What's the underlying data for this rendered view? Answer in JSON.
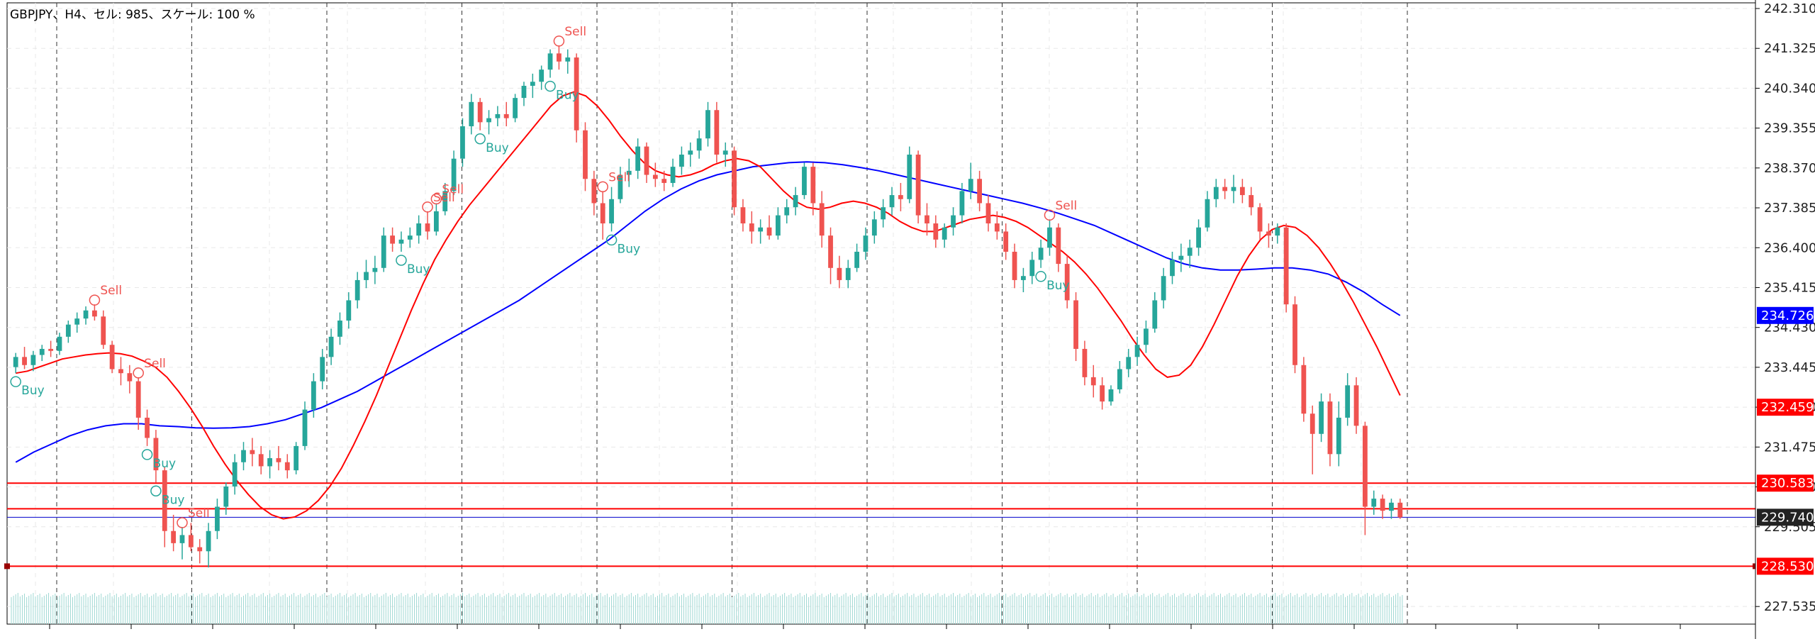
{
  "header": {
    "text": "GBPJPY、H4、セル: 985、スケール: 100 %"
  },
  "colors": {
    "bull": "#26a69a",
    "bear": "#ef5350",
    "ma_fast": "#ff0000",
    "ma_slow": "#0000ff",
    "hline": "#ff0000",
    "bid_line": "#0000cc",
    "grid": "#e8e8e8",
    "vsep": "#333333",
    "volume": "#9fd8d3",
    "tag_blue": "#0000ff",
    "tag_red": "#ff0000",
    "tag_dark": "#222222"
  },
  "chart_data": {
    "type": "candlestick",
    "symbol": "GBPJPY",
    "timeframe": "H4",
    "y_axis": {
      "ylim": [
        227.1,
        242.45
      ],
      "ticks": [
        "242.310",
        "241.325",
        "240.340",
        "239.355",
        "238.370",
        "237.385",
        "236.400",
        "235.415",
        "234.430",
        "233.445",
        "232.460",
        "231.475",
        "230.490",
        "229.505",
        "227.535"
      ],
      "tick_values": [
        242.31,
        241.325,
        240.34,
        239.355,
        238.37,
        237.385,
        236.4,
        235.415,
        234.43,
        233.445,
        232.46,
        231.475,
        230.49,
        229.505,
        227.535
      ]
    },
    "price_tags": [
      {
        "label": "234.726",
        "value": 234.726,
        "color": "blue"
      },
      {
        "label": "232.459",
        "value": 232.459,
        "color": "red"
      },
      {
        "label": "230.583",
        "value": 230.583,
        "color": "red"
      },
      {
        "label": "229.740",
        "value": 229.74,
        "color": "dark"
      },
      {
        "label": "228.530",
        "value": 228.53,
        "color": "red"
      }
    ],
    "horizontal_lines": [
      230.583,
      229.95,
      228.53
    ],
    "bid_line": 229.74,
    "period_separators_count": 11,
    "candles": [
      [
        233.45,
        233.8,
        233.3,
        233.7
      ],
      [
        233.7,
        233.95,
        233.4,
        233.5
      ],
      [
        233.5,
        233.85,
        233.35,
        233.75
      ],
      [
        233.75,
        234.0,
        233.6,
        233.9
      ],
      [
        233.9,
        234.1,
        233.7,
        233.85
      ],
      [
        233.85,
        234.3,
        233.75,
        234.2
      ],
      [
        234.2,
        234.6,
        234.05,
        234.5
      ],
      [
        234.5,
        234.8,
        234.3,
        234.65
      ],
      [
        234.65,
        234.95,
        234.5,
        234.85
      ],
      [
        234.85,
        235.0,
        234.6,
        234.7
      ],
      [
        234.7,
        234.85,
        233.9,
        234.0
      ],
      [
        234.0,
        234.1,
        233.3,
        233.4
      ],
      [
        233.4,
        233.7,
        233.0,
        233.3
      ],
      [
        233.3,
        233.5,
        232.8,
        233.1
      ],
      [
        233.1,
        233.2,
        231.9,
        232.2
      ],
      [
        232.2,
        232.4,
        231.5,
        231.7
      ],
      [
        231.7,
        231.9,
        230.6,
        230.9
      ],
      [
        230.9,
        231.0,
        229.0,
        229.4
      ],
      [
        229.4,
        229.8,
        228.9,
        229.1
      ],
      [
        229.1,
        229.5,
        228.7,
        229.3
      ],
      [
        229.3,
        229.6,
        228.9,
        229.0
      ],
      [
        229.0,
        229.2,
        228.6,
        228.9
      ],
      [
        228.9,
        229.6,
        228.5,
        229.4
      ],
      [
        229.4,
        230.2,
        229.2,
        230.0
      ],
      [
        230.0,
        230.6,
        229.8,
        230.5
      ],
      [
        230.5,
        231.3,
        230.3,
        231.1
      ],
      [
        231.1,
        231.6,
        230.9,
        231.4
      ],
      [
        231.4,
        231.7,
        231.0,
        231.3
      ],
      [
        231.3,
        231.5,
        230.8,
        231.0
      ],
      [
        231.0,
        231.4,
        230.7,
        231.2
      ],
      [
        231.2,
        231.5,
        230.9,
        231.1
      ],
      [
        231.1,
        231.3,
        230.7,
        230.9
      ],
      [
        230.9,
        231.6,
        230.8,
        231.5
      ],
      [
        231.5,
        232.6,
        231.4,
        232.4
      ],
      [
        232.4,
        233.3,
        232.2,
        233.1
      ],
      [
        233.1,
        233.9,
        232.9,
        233.7
      ],
      [
        233.7,
        234.4,
        233.5,
        234.2
      ],
      [
        234.2,
        234.8,
        234.0,
        234.6
      ],
      [
        234.6,
        235.3,
        234.4,
        235.1
      ],
      [
        235.1,
        235.8,
        234.9,
        235.6
      ],
      [
        235.6,
        236.1,
        235.4,
        235.8
      ],
      [
        235.8,
        236.2,
        235.5,
        235.9
      ],
      [
        235.9,
        236.9,
        235.8,
        236.7
      ],
      [
        236.7,
        236.9,
        236.3,
        236.5
      ],
      [
        236.5,
        236.8,
        236.3,
        236.6
      ],
      [
        236.6,
        236.9,
        236.4,
        236.7
      ],
      [
        236.7,
        237.2,
        236.5,
        237.0
      ],
      [
        237.0,
        237.3,
        236.6,
        236.8
      ],
      [
        236.8,
        237.5,
        236.7,
        237.3
      ],
      [
        237.3,
        238.0,
        237.2,
        237.8
      ],
      [
        237.8,
        238.8,
        237.7,
        238.6
      ],
      [
        238.6,
        239.6,
        238.4,
        239.4
      ],
      [
        239.4,
        240.2,
        239.2,
        240.0
      ],
      [
        240.0,
        240.1,
        239.3,
        239.5
      ],
      [
        239.5,
        239.8,
        239.2,
        239.6
      ],
      [
        239.6,
        239.9,
        239.4,
        239.7
      ],
      [
        239.7,
        240.0,
        239.4,
        239.6
      ],
      [
        239.6,
        240.2,
        239.5,
        240.1
      ],
      [
        240.1,
        240.5,
        239.9,
        240.4
      ],
      [
        240.4,
        240.7,
        240.1,
        240.5
      ],
      [
        240.5,
        240.9,
        240.3,
        240.8
      ],
      [
        240.8,
        241.3,
        240.6,
        241.2
      ],
      [
        241.2,
        241.4,
        240.8,
        241.0
      ],
      [
        241.0,
        241.3,
        240.7,
        241.1
      ],
      [
        241.1,
        241.2,
        239.0,
        239.3
      ],
      [
        239.3,
        239.5,
        237.8,
        238.1
      ],
      [
        238.1,
        238.3,
        237.2,
        237.5
      ],
      [
        237.5,
        237.8,
        236.6,
        237.0
      ],
      [
        237.0,
        237.9,
        236.8,
        237.6
      ],
      [
        237.6,
        238.4,
        237.5,
        238.2
      ],
      [
        238.2,
        238.6,
        237.9,
        238.3
      ],
      [
        238.3,
        239.1,
        238.1,
        238.9
      ],
      [
        238.9,
        239.0,
        238.0,
        238.2
      ],
      [
        238.2,
        238.5,
        237.9,
        238.1
      ],
      [
        238.1,
        238.3,
        237.8,
        238.0
      ],
      [
        238.0,
        238.6,
        237.9,
        238.4
      ],
      [
        238.4,
        238.9,
        238.2,
        238.7
      ],
      [
        238.7,
        239.0,
        238.4,
        238.8
      ],
      [
        238.8,
        239.3,
        238.6,
        239.1
      ],
      [
        239.1,
        240.0,
        238.9,
        239.8
      ],
      [
        239.8,
        240.0,
        238.5,
        238.7
      ],
      [
        238.7,
        239.0,
        238.4,
        238.8
      ],
      [
        238.8,
        238.9,
        237.2,
        237.4
      ],
      [
        237.4,
        237.6,
        236.8,
        237.0
      ],
      [
        237.0,
        237.3,
        236.5,
        236.8
      ],
      [
        236.8,
        237.1,
        236.5,
        236.9
      ],
      [
        236.9,
        237.2,
        236.6,
        236.7
      ],
      [
        236.7,
        237.4,
        236.6,
        237.2
      ],
      [
        237.2,
        237.6,
        237.0,
        237.4
      ],
      [
        237.4,
        237.9,
        237.2,
        237.7
      ],
      [
        237.7,
        238.5,
        237.6,
        238.4
      ],
      [
        238.4,
        238.5,
        237.2,
        237.5
      ],
      [
        237.5,
        237.8,
        236.4,
        236.7
      ],
      [
        236.7,
        236.9,
        235.5,
        235.9
      ],
      [
        235.9,
        236.2,
        235.4,
        235.6
      ],
      [
        235.6,
        236.1,
        235.4,
        235.9
      ],
      [
        235.9,
        236.5,
        235.8,
        236.3
      ],
      [
        236.3,
        236.9,
        236.1,
        236.7
      ],
      [
        236.7,
        237.3,
        236.5,
        237.1
      ],
      [
        237.1,
        237.6,
        236.9,
        237.4
      ],
      [
        237.4,
        237.9,
        237.2,
        237.7
      ],
      [
        237.7,
        238.0,
        237.3,
        237.6
      ],
      [
        237.6,
        238.9,
        237.5,
        238.7
      ],
      [
        238.7,
        238.8,
        237.0,
        237.2
      ],
      [
        237.2,
        237.5,
        236.7,
        237.0
      ],
      [
        237.0,
        237.2,
        236.4,
        236.6
      ],
      [
        236.6,
        237.0,
        236.4,
        236.9
      ],
      [
        236.9,
        237.4,
        236.7,
        237.2
      ],
      [
        237.2,
        238.0,
        237.0,
        237.8
      ],
      [
        237.8,
        238.5,
        237.6,
        238.1
      ],
      [
        238.1,
        238.3,
        237.3,
        237.5
      ],
      [
        237.5,
        237.7,
        236.8,
        237.0
      ],
      [
        237.0,
        237.3,
        236.6,
        236.8
      ],
      [
        236.8,
        237.0,
        236.1,
        236.3
      ],
      [
        236.3,
        236.5,
        235.4,
        235.6
      ],
      [
        235.6,
        235.9,
        235.3,
        235.7
      ],
      [
        235.7,
        236.3,
        235.5,
        236.1
      ],
      [
        236.1,
        236.6,
        235.9,
        236.4
      ],
      [
        236.4,
        237.1,
        236.2,
        236.9
      ],
      [
        236.9,
        237.0,
        235.8,
        236.0
      ],
      [
        236.0,
        236.2,
        234.9,
        235.1
      ],
      [
        235.1,
        235.3,
        233.6,
        233.9
      ],
      [
        233.9,
        234.1,
        233.0,
        233.2
      ],
      [
        233.2,
        233.5,
        232.7,
        233.0
      ],
      [
        233.0,
        233.2,
        232.4,
        232.6
      ],
      [
        232.6,
        233.0,
        232.5,
        232.9
      ],
      [
        232.9,
        233.6,
        232.8,
        233.4
      ],
      [
        233.4,
        233.9,
        233.2,
        233.7
      ],
      [
        233.7,
        234.2,
        233.5,
        234.0
      ],
      [
        234.0,
        234.6,
        233.8,
        234.4
      ],
      [
        234.4,
        235.3,
        234.3,
        235.1
      ],
      [
        235.1,
        235.9,
        234.9,
        235.7
      ],
      [
        235.7,
        236.3,
        235.5,
        236.1
      ],
      [
        236.1,
        236.5,
        235.8,
        236.2
      ],
      [
        236.2,
        236.6,
        235.9,
        236.4
      ],
      [
        236.4,
        237.1,
        236.2,
        236.9
      ],
      [
        236.9,
        237.8,
        236.8,
        237.6
      ],
      [
        237.6,
        238.1,
        237.4,
        237.9
      ],
      [
        237.9,
        238.1,
        237.6,
        237.8
      ],
      [
        237.8,
        238.2,
        237.5,
        237.9
      ],
      [
        237.9,
        238.1,
        237.5,
        237.7
      ],
      [
        237.7,
        237.9,
        237.2,
        237.4
      ],
      [
        237.4,
        237.5,
        236.6,
        236.8
      ],
      [
        236.8,
        237.0,
        236.4,
        236.7
      ],
      [
        236.7,
        237.0,
        236.5,
        236.9
      ],
      [
        236.9,
        237.0,
        234.8,
        235.0
      ],
      [
        235.0,
        235.2,
        233.3,
        233.5
      ],
      [
        233.5,
        233.7,
        232.1,
        232.3
      ],
      [
        232.3,
        232.5,
        230.8,
        231.8
      ],
      [
        231.8,
        232.8,
        231.6,
        232.6
      ],
      [
        232.6,
        232.8,
        231.0,
        231.3
      ],
      [
        231.3,
        232.6,
        231.0,
        232.2
      ],
      [
        232.2,
        233.3,
        232.0,
        233.0
      ],
      [
        233.0,
        233.2,
        231.8,
        232.0
      ],
      [
        232.0,
        232.1,
        229.3,
        230.0
      ],
      [
        230.0,
        230.4,
        229.8,
        230.2
      ],
      [
        230.2,
        230.3,
        229.7,
        229.9
      ],
      [
        229.9,
        230.2,
        229.7,
        230.1
      ],
      [
        230.1,
        230.2,
        229.7,
        229.74
      ]
    ],
    "ma_fast": [
      233.3,
      233.35,
      233.45,
      233.55,
      233.65,
      233.7,
      233.75,
      233.78,
      233.8,
      233.78,
      233.72,
      233.6,
      233.45,
      233.2,
      232.85,
      232.45,
      232.0,
      231.5,
      231.05,
      230.65,
      230.3,
      230.0,
      229.8,
      229.7,
      229.75,
      229.9,
      230.15,
      230.5,
      230.95,
      231.5,
      232.1,
      232.75,
      233.45,
      234.15,
      234.85,
      235.5,
      236.1,
      236.6,
      237.05,
      237.45,
      237.8,
      238.15,
      238.5,
      238.85,
      239.2,
      239.55,
      239.9,
      240.15,
      240.25,
      240.15,
      239.9,
      239.55,
      239.15,
      238.8,
      238.5,
      238.3,
      238.2,
      238.15,
      238.2,
      238.3,
      238.45,
      238.55,
      238.6,
      238.55,
      238.4,
      238.1,
      237.8,
      237.55,
      237.4,
      237.35,
      237.4,
      237.5,
      237.55,
      237.5,
      237.4,
      237.25,
      237.05,
      236.9,
      236.8,
      236.8,
      236.9,
      237.0,
      237.1,
      237.15,
      237.2,
      237.15,
      237.05,
      236.9,
      236.7,
      236.5,
      236.3,
      236.05,
      235.75,
      235.4,
      235.0,
      234.6,
      234.15,
      233.75,
      233.4,
      233.2,
      233.25,
      233.5,
      233.95,
      234.5,
      235.1,
      235.7,
      236.2,
      236.6,
      236.85,
      236.95,
      236.9,
      236.7,
      236.4,
      236.0,
      235.55,
      235.05,
      234.5,
      233.95,
      233.35,
      232.75
    ],
    "ma_fast_start_index": 0,
    "ma_slow": [
      231.1,
      231.35,
      231.55,
      231.75,
      231.9,
      232.0,
      232.05,
      232.05,
      232.0,
      231.98,
      231.95,
      231.94,
      231.95,
      231.98,
      232.05,
      232.15,
      232.3,
      232.45,
      232.65,
      232.85,
      233.1,
      233.35,
      233.6,
      233.85,
      234.1,
      234.35,
      234.6,
      234.85,
      235.1,
      235.4,
      235.7,
      236.0,
      236.3,
      236.6,
      236.95,
      237.3,
      237.6,
      237.85,
      238.05,
      238.2,
      238.3,
      238.4,
      238.45,
      238.5,
      238.52,
      238.5,
      238.45,
      238.38,
      238.3,
      238.2,
      238.1,
      238.0,
      237.9,
      237.8,
      237.7,
      237.6,
      237.5,
      237.38,
      237.25,
      237.1,
      236.95,
      236.75,
      236.55,
      236.35,
      236.15,
      236.0,
      235.9,
      235.85,
      235.85,
      235.87,
      235.9,
      235.9,
      235.85,
      235.75,
      235.55,
      235.3,
      235.0,
      234.726
    ],
    "signals": [
      {
        "label": "Buy",
        "type": "buy",
        "i": 0
      },
      {
        "label": "Sell",
        "type": "sell",
        "i": 9
      },
      {
        "label": "Sell",
        "type": "sell",
        "i": 14
      },
      {
        "label": "Buy",
        "type": "buy",
        "i": 15
      },
      {
        "label": "Buy",
        "type": "buy",
        "i": 16
      },
      {
        "label": "Sell",
        "type": "sell",
        "i": 19
      },
      {
        "label": "Buy",
        "type": "buy",
        "i": 44
      },
      {
        "label": "Sell",
        "type": "sell",
        "i": 47
      },
      {
        "label": "Sell",
        "type": "sell",
        "i": 48
      },
      {
        "label": "Buy",
        "type": "buy",
        "i": 53
      },
      {
        "label": "Buy",
        "type": "buy",
        "i": 61
      },
      {
        "label": "Sell",
        "type": "sell",
        "i": 62
      },
      {
        "label": "Sell",
        "type": "sell",
        "i": 67
      },
      {
        "label": "Buy",
        "type": "buy",
        "i": 68
      },
      {
        "label": "Buy",
        "type": "buy",
        "i": 117
      },
      {
        "label": "Sell",
        "type": "sell",
        "i": 118
      }
    ]
  }
}
